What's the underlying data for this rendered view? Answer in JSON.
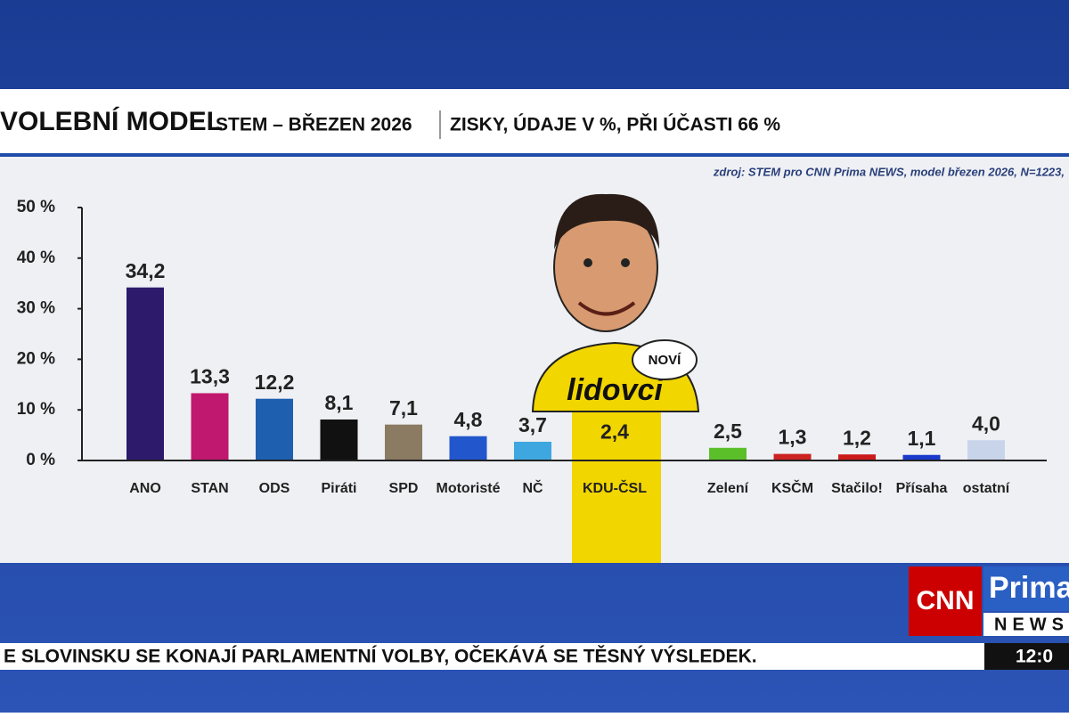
{
  "header": {
    "title": "VOLEBNÍ MODEL",
    "subtitle": "STEM – BŘEZEN 2026",
    "note": "ZISKY, ÚDAJE V %, PŘI ÚČASTI 66 %",
    "source": "zdroj: STEM pro CNN Prima NEWS, model březen 2026, N=1223,"
  },
  "badge": {
    "logo": "lidovci",
    "bubble": "NOVÍ"
  },
  "chart_data": {
    "type": "bar",
    "categories": [
      "ANO",
      "STAN",
      "ODS",
      "Piráti",
      "SPD",
      "Motoristé",
      "NČ",
      "KDU-ČSL",
      "Zelení",
      "KSČM",
      "Stačilo!",
      "Přísaha",
      "ostatní"
    ],
    "values": [
      34.2,
      13.3,
      12.2,
      8.1,
      7.1,
      4.8,
      3.7,
      2.4,
      2.5,
      1.3,
      1.2,
      1.1,
      4.0
    ],
    "value_labels": [
      "34,2",
      "13,3",
      "12,2",
      "8,1",
      "7,1",
      "4,8",
      "3,7",
      "2,4",
      "2,5",
      "1,3",
      "1,2",
      "1,1",
      "4,0"
    ],
    "colors": [
      "#2d1a6b",
      "#c0186e",
      "#1f5fb0",
      "#111111",
      "#8a7b62",
      "#2256cc",
      "#3fa7e0",
      "#f2d600",
      "#5bbf2a",
      "#cc2222",
      "#cc1a1a",
      "#1a3acc",
      "#c8d4ea"
    ],
    "ylim": [
      0,
      50
    ],
    "yticks": [
      {
        "value": 0,
        "label": "0 %"
      },
      {
        "value": 10,
        "label": "10 %"
      },
      {
        "value": 20,
        "label": "20 %"
      },
      {
        "value": 30,
        "label": "30 %"
      },
      {
        "value": 40,
        "label": "40 %"
      },
      {
        "value": 50,
        "label": "50 %"
      }
    ],
    "grid": false
  },
  "ticker": {
    "text": "E SLOVINSKU SE KONAJÍ PARLAMENTNÍ VOLBY, OČEKÁVÁ SE TĚSNÝ VÝSLEDEK.",
    "time": "12:0"
  },
  "channel": {
    "cnn": "CNN",
    "prima": "Prima",
    "news": "NEWS"
  }
}
